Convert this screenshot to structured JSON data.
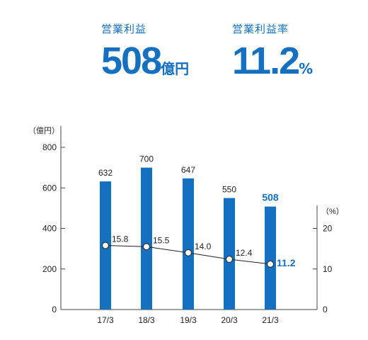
{
  "kpis": [
    {
      "label": "営業利益",
      "value": "508",
      "unit": "億円"
    },
    {
      "label": "営業利益率",
      "value": "11.2",
      "unit": "%"
    }
  ],
  "chart_data": {
    "type": "bar",
    "categories": [
      "17/3",
      "18/3",
      "19/3",
      "20/3",
      "21/3"
    ],
    "series": [
      {
        "name": "営業利益",
        "type": "bar",
        "axis": "left",
        "values": [
          632,
          700,
          647,
          550,
          508
        ],
        "labels": [
          "632",
          "700",
          "647",
          "550",
          "508"
        ]
      },
      {
        "name": "営業利益率",
        "type": "line",
        "axis": "right",
        "values": [
          15.8,
          15.5,
          14.0,
          12.4,
          11.2
        ],
        "labels": [
          "15.8",
          "15.5",
          "14.0",
          "12.4",
          "11.2"
        ]
      }
    ],
    "y_left": {
      "unit": "（億円）",
      "ylim": [
        0,
        800
      ],
      "ticks": [
        "0",
        "200",
        "400",
        "600",
        "800"
      ]
    },
    "y_right": {
      "unit": "（%）",
      "ylim": [
        0,
        40
      ],
      "ticks": [
        "0",
        "10",
        "20"
      ]
    },
    "highlight_index": 4,
    "colors": {
      "bar": "#1570c0",
      "highlight": "#1570c0",
      "line": "#222222"
    },
    "grid": false
  }
}
